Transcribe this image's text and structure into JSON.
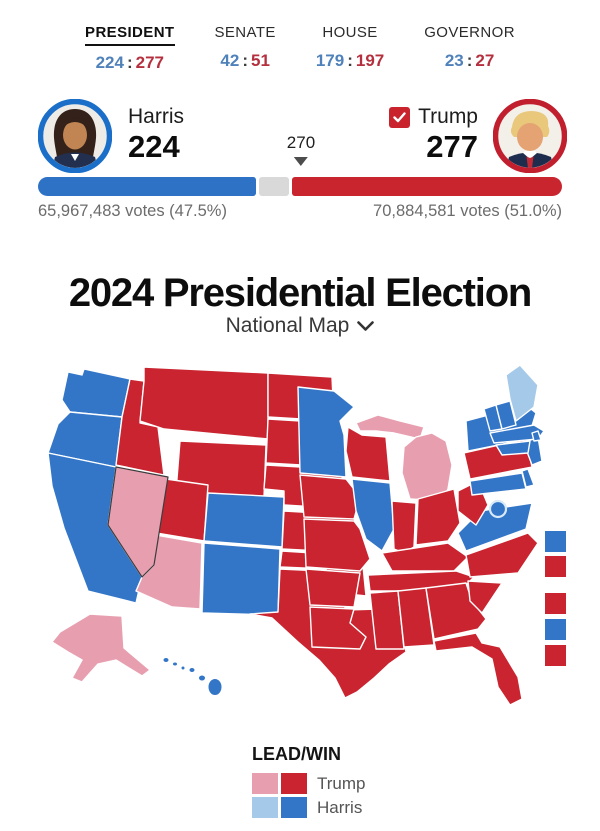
{
  "nav": {
    "separator": ":",
    "tabs": [
      {
        "label": "PRESIDENT",
        "dem": "224",
        "rep": "277",
        "active": true
      },
      {
        "label": "SENATE",
        "dem": "42",
        "rep": "51",
        "active": false
      },
      {
        "label": "HOUSE",
        "dem": "179",
        "rep": "197",
        "active": false
      },
      {
        "label": "GOVERNOR",
        "dem": "23",
        "rep": "27",
        "active": false
      }
    ]
  },
  "scoreboard": {
    "harris": {
      "name": "Harris",
      "electoral_votes": "224",
      "popular": "65,967,483 votes (47.5%)"
    },
    "trump": {
      "name": "Trump",
      "electoral_votes": "277",
      "popular": "70,884,581 votes (51.0%)",
      "winner": true
    },
    "threshold_label": "270",
    "bar": {
      "dem_ev": 224,
      "rep_ev": 277,
      "total_ev": 538,
      "threshold": 270
    }
  },
  "page_title": "2024 Presidential Election",
  "map_selector_label": "National Map",
  "legend": {
    "heading": "LEAD/WIN",
    "trump_label": "Trump",
    "harris_label": "Harris"
  },
  "colors": {
    "dem_win": "#3376c8",
    "dem_lead": "#a5c9e9",
    "rep_win": "#c9242f",
    "rep_lead": "#e79fb0",
    "bar_dem": "#2e72c6",
    "bar_rep": "#c9252f",
    "bar_undecided": "#d9d9d9",
    "nav_dem": "#4f81ba",
    "nav_rep": "#b5303e"
  },
  "chart_data": {
    "type": "choropleth-map",
    "title": "2024 Presidential Election",
    "legend_categories": [
      "rep_lead",
      "rep_win",
      "dem_lead",
      "dem_win"
    ],
    "states": {
      "WA": "dem_win",
      "OR": "dem_win",
      "CA": "dem_win",
      "NV": "rep_lead",
      "ID": "rep_win",
      "MT": "rep_win",
      "WY": "rep_win",
      "UT": "rep_win",
      "AZ": "rep_lead",
      "CO": "dem_win",
      "NM": "dem_win",
      "ND": "rep_win",
      "SD": "rep_win",
      "NE": "rep_win",
      "KS": "rep_win",
      "OK": "rep_win",
      "TX": "rep_win",
      "MN": "dem_win",
      "IA": "rep_win",
      "MO": "rep_win",
      "AR": "rep_win",
      "LA": "rep_win",
      "WI": "rep_win",
      "MI": "rep_lead",
      "IL": "dem_win",
      "IN": "rep_win",
      "OH": "rep_win",
      "KY": "rep_win",
      "TN": "rep_win",
      "MS": "rep_win",
      "AL": "rep_win",
      "GA": "rep_win",
      "FL": "rep_win",
      "SC": "rep_win",
      "NC": "rep_win",
      "VA": "dem_win",
      "WV": "rep_win",
      "PA": "rep_win",
      "NY": "dem_win",
      "NJ": "dem_win",
      "MD": "dem_win",
      "DE": "dem_win",
      "DC": "dem_win",
      "VT": "dem_win",
      "NH": "dem_win",
      "ME": "dem_lead",
      "MA": "dem_win",
      "RI": "dem_win",
      "CT": "dem_win",
      "AK": "rep_lead",
      "HI": "dem_win"
    },
    "districts": [
      {
        "id": "ME-1",
        "result": "dem_win"
      },
      {
        "id": "ME-2",
        "result": "rep_win"
      },
      {
        "id": "NE-1",
        "result": "rep_win"
      },
      {
        "id": "NE-2",
        "result": "dem_win"
      },
      {
        "id": "NE-3",
        "result": "rep_win"
      }
    ]
  }
}
